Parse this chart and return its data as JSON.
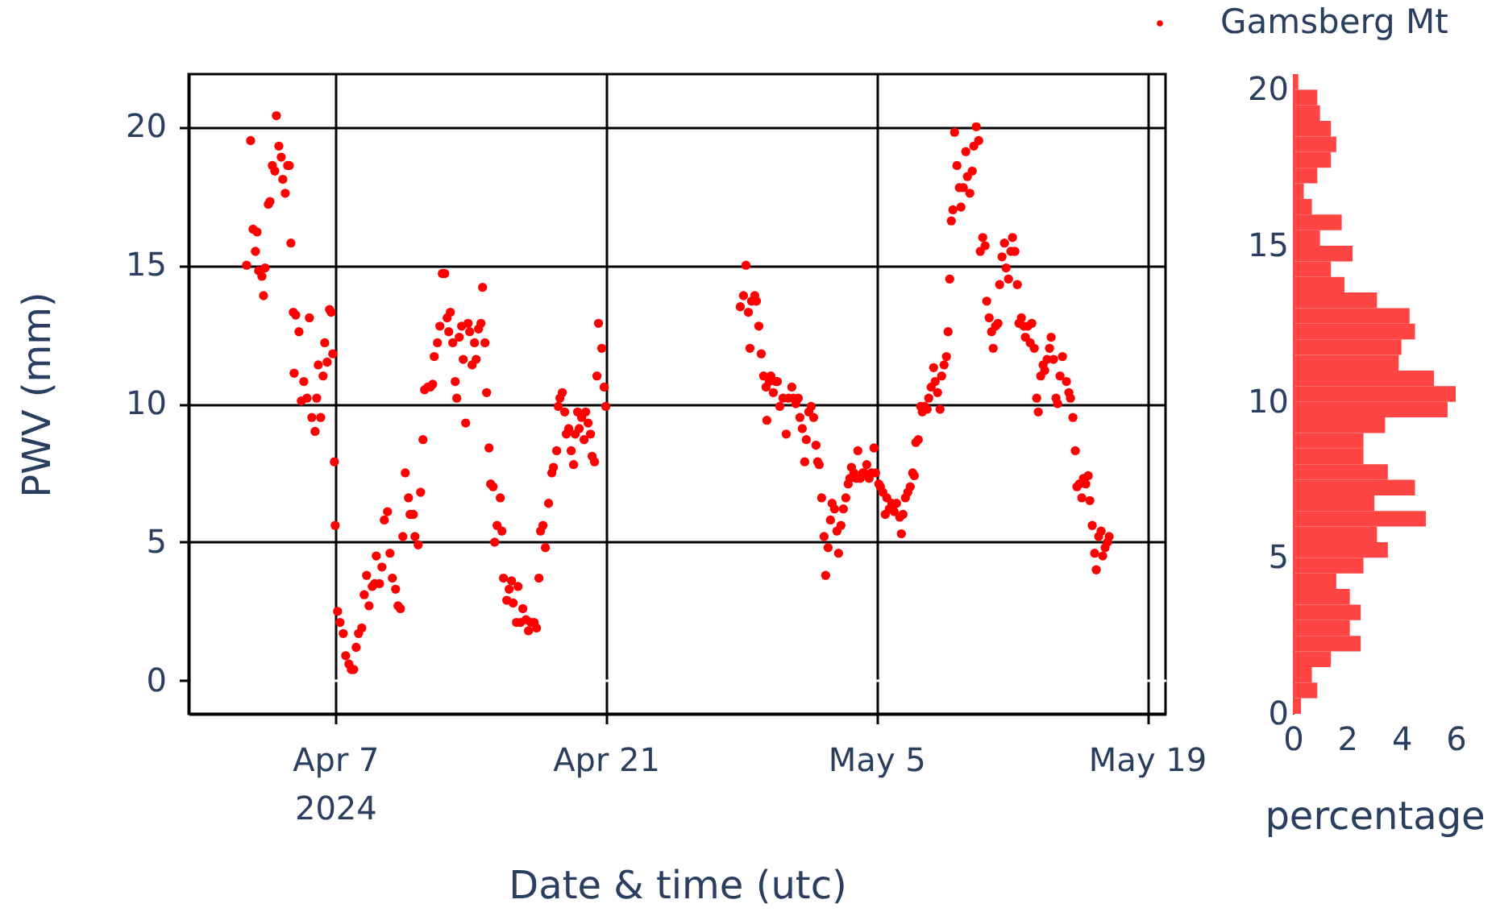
{
  "chart_data": [
    {
      "type": "scatter",
      "xlabel": "Date & time (utc)",
      "ylabel": "PWV (mm)",
      "legend": "top right",
      "marker": "circle",
      "grid": true,
      "xlim": [
        "2024-03-30T10:00",
        "2024-05-19T23:00"
      ],
      "xticks": [
        {
          "value": "2024-04-07",
          "label": "Apr 7\n2024"
        },
        {
          "value": "2024-04-21",
          "label": "Apr 21"
        },
        {
          "value": "2024-05-05",
          "label": "May 5"
        },
        {
          "value": "2024-05-19",
          "label": "May 19"
        }
      ],
      "ylim": [
        -1.2,
        21.9
      ],
      "yticks": [
        0,
        5,
        10,
        15,
        20
      ],
      "x": [
        "2024-04-02T10:00",
        "2024-04-02T15:00",
        "2024-04-02T18:00",
        "2024-04-02T21:00",
        "2024-04-02T23:00",
        "2024-04-03T01:00",
        "2024-04-03T05:00",
        "2024-04-03T07:00",
        "2024-04-03T09:00",
        "2024-04-03T13:00",
        "2024-04-03T15:00",
        "2024-04-03T18:00",
        "2024-04-03T21:00",
        "2024-04-03T23:00",
        "2024-04-04T02:00",
        "2024-04-04T05:00",
        "2024-04-04T07:00",
        "2024-04-04T10:00",
        "2024-04-04T13:00",
        "2024-04-04T15:00",
        "2024-04-04T17:00",
        "2024-04-04T20:00",
        "2024-04-04T21:00",
        "2024-04-04T23:00",
        "2024-04-05T03:00",
        "2024-04-05T06:00",
        "2024-04-05T09:00",
        "2024-04-05T13:00",
        "2024-04-05T16:00",
        "2024-04-05T19:00",
        "2024-04-05T23:00",
        "2024-04-06T01:00",
        "2024-04-06T03:00",
        "2024-04-06T06:00",
        "2024-04-06T09:00",
        "2024-04-06T11:00",
        "2024-04-06T14:00",
        "2024-04-06T17:00",
        "2024-04-06T19:00",
        "2024-04-06T21:00",
        "2024-04-06T23:00",
        "2024-04-07T00:00",
        "2024-04-07T03:00",
        "2024-04-07T06:00",
        "2024-04-07T10:00",
        "2024-04-07T13:00",
        "2024-04-07T17:00",
        "2024-04-07T20:00",
        "2024-04-07T23:00",
        "2024-04-08T02:00",
        "2024-04-08T05:00",
        "2024-04-08T09:00",
        "2024-04-08T12:00",
        "2024-04-08T15:00",
        "2024-04-08T18:00",
        "2024-04-08T22:00",
        "2024-04-09T01:00",
        "2024-04-09T03:00",
        "2024-04-09T07:00",
        "2024-04-09T10:00",
        "2024-04-09T13:00",
        "2024-04-09T17:00",
        "2024-04-09T20:00",
        "2024-04-09T23:00",
        "2024-04-10T03:00",
        "2024-04-10T06:00",
        "2024-04-10T09:00",
        "2024-04-10T12:00",
        "2024-04-10T15:00",
        "2024-04-10T19:00",
        "2024-04-10T21:00",
        "2024-04-11T01:00",
        "2024-04-11T03:00",
        "2024-04-11T07:00",
        "2024-04-11T10:00",
        "2024-04-11T13:00",
        "2024-04-11T15:00",
        "2024-04-11T19:00",
        "2024-04-11T22:00",
        "2024-04-12T01:00",
        "2024-04-12T03:00",
        "2024-04-12T07:00",
        "2024-04-12T10:00",
        "2024-04-12T13:00",
        "2024-04-12T16:00",
        "2024-04-12T19:00",
        "2024-04-12T21:00",
        "2024-04-12T23:00",
        "2024-04-13T02:00",
        "2024-04-13T05:00",
        "2024-04-13T07:00",
        "2024-04-13T10:00",
        "2024-04-13T13:00",
        "2024-04-13T15:00",
        "2024-04-13T18:00",
        "2024-04-13T21:00",
        "2024-04-13T23:00",
        "2024-04-14T02:00",
        "2024-04-14T05:00",
        "2024-04-14T07:00",
        "2024-04-14T10:00",
        "2024-04-14T13:00",
        "2024-04-14T15:00",
        "2024-04-14T18:00",
        "2024-04-14T20:00",
        "2024-04-14T23:00",
        "2024-04-15T01:00",
        "2024-04-15T04:00",
        "2024-04-15T06:00",
        "2024-04-15T09:00",
        "2024-04-15T13:00",
        "2024-04-15T15:00",
        "2024-04-15T17:00",
        "2024-04-15T21:00",
        "2024-04-16T00:00",
        "2024-04-16T03:00",
        "2024-04-16T05:00",
        "2024-04-16T09:00",
        "2024-04-16T11:00",
        "2024-04-16T14:00",
        "2024-04-16T17:00",
        "2024-04-16T21:00",
        "2024-04-17T00:00",
        "2024-04-17T03:00",
        "2024-04-17T07:00",
        "2024-04-17T10:00",
        "2024-04-17T13:00",
        "2024-04-17T15:00",
        "2024-04-17T18:00",
        "2024-04-17T21:00",
        "2024-04-18T01:00",
        "2024-04-18T05:00",
        "2024-04-18T07:00",
        "2024-04-18T11:00",
        "2024-04-18T13:00",
        "2024-04-18T15:00",
        "2024-04-18T18:00",
        "2024-04-18T21:00",
        "2024-04-18T23:00",
        "2024-04-19T02:00",
        "2024-04-19T05:00",
        "2024-04-19T08:00",
        "2024-04-19T10:00",
        "2024-04-19T13:00",
        "2024-04-19T15:00",
        "2024-04-19T18:00",
        "2024-04-19T21:00",
        "2024-04-19T23:00",
        "2024-04-20T02:00",
        "2024-04-20T05:00",
        "2024-04-20T07:00",
        "2024-04-20T10:00",
        "2024-04-20T13:00",
        "2024-04-20T15:00",
        "2024-04-20T19:00",
        "2024-04-20T22:00",
        "2024-04-21T00:00",
        "2024-04-27T23:00",
        "2024-04-28T03:00",
        "2024-04-28T06:00",
        "2024-04-28T09:00",
        "2024-04-28T11:00",
        "2024-04-28T13:00",
        "2024-04-28T17:00",
        "2024-04-28T19:00",
        "2024-04-28T22:00",
        "2024-04-29T01:00",
        "2024-04-29T04:00",
        "2024-04-29T07:00",
        "2024-04-29T08:00",
        "2024-04-29T11:00",
        "2024-04-29T13:00",
        "2024-04-29T16:00",
        "2024-04-29T19:00",
        "2024-04-29T21:00",
        "2024-04-30T00:00",
        "2024-04-30T04:00",
        "2024-04-30T08:00",
        "2024-04-30T11:00",
        "2024-04-30T15:00",
        "2024-04-30T17:00",
        "2024-04-30T20:00",
        "2024-04-30T23:00",
        "2024-05-01T01:00",
        "2024-05-01T04:00",
        "2024-05-01T07:00",
        "2024-05-01T09:00",
        "2024-05-01T12:00",
        "2024-05-01T15:00",
        "2024-05-01T18:00",
        "2024-05-01T21:00",
        "2024-05-01T23:00",
        "2024-05-02T01:00",
        "2024-05-02T04:00",
        "2024-05-02T07:00",
        "2024-05-02T09:00",
        "2024-05-02T12:00",
        "2024-05-02T15:00",
        "2024-05-02T17:00",
        "2024-05-02T20:00",
        "2024-05-02T23:00",
        "2024-05-03T01:00",
        "2024-05-03T04:00",
        "2024-05-03T07:00",
        "2024-05-03T10:00",
        "2024-05-03T13:00",
        "2024-05-03T15:00",
        "2024-05-03T17:00",
        "2024-05-03T20:00",
        "2024-05-03T23:00",
        "2024-05-04T01:00",
        "2024-05-04T04:00",
        "2024-05-04T07:00",
        "2024-05-04T09:00",
        "2024-05-04T12:00",
        "2024-05-04T15:00",
        "2024-05-04T18:00",
        "2024-05-04T21:00",
        "2024-05-04T23:00",
        "2024-05-05T03:00",
        "2024-05-05T05:00",
        "2024-05-05T08:00",
        "2024-05-05T11:00",
        "2024-05-05T13:00",
        "2024-05-05T16:00",
        "2024-05-05T19:00",
        "2024-05-05T22:00",
        "2024-05-06T01:00",
        "2024-05-06T05:00",
        "2024-05-06T07:00",
        "2024-05-06T09:00",
        "2024-05-06T12:00",
        "2024-05-06T15:00",
        "2024-05-06T18:00",
        "2024-05-06T21:00",
        "2024-05-06T23:00",
        "2024-05-07T01:00",
        "2024-05-07T04:00",
        "2024-05-07T07:00",
        "2024-05-07T09:00",
        "2024-05-07T12:00",
        "2024-05-07T15:00",
        "2024-05-07T17:00",
        "2024-05-07T20:00",
        "2024-05-07T23:00",
        "2024-05-08T01:00",
        "2024-05-08T04:00",
        "2024-05-08T07:00",
        "2024-05-08T09:00",
        "2024-05-08T12:00",
        "2024-05-08T15:00",
        "2024-05-08T17:00",
        "2024-05-08T19:00",
        "2024-05-08T21:00",
        "2024-05-08T23:00",
        "2024-05-09T01:00",
        "2024-05-09T04:00",
        "2024-05-09T07:00",
        "2024-05-09T09:00",
        "2024-05-09T12:00",
        "2024-05-09T15:00",
        "2024-05-09T17:00",
        "2024-05-09T20:00",
        "2024-05-09T23:00",
        "2024-05-10T01:00",
        "2024-05-10T04:00",
        "2024-05-10T07:00",
        "2024-05-10T09:00",
        "2024-05-10T12:00",
        "2024-05-10T15:00",
        "2024-05-10T17:00",
        "2024-05-10T20:00",
        "2024-05-10T23:00",
        "2024-05-11T01:00",
        "2024-05-11T04:00",
        "2024-05-11T07:00",
        "2024-05-11T09:00",
        "2024-05-11T12:00",
        "2024-05-11T15:00",
        "2024-05-11T17:00",
        "2024-05-11T20:00",
        "2024-05-11T23:00",
        "2024-05-12T01:00",
        "2024-05-12T04:00",
        "2024-05-12T07:00",
        "2024-05-12T09:00",
        "2024-05-12T12:00",
        "2024-05-12T15:00",
        "2024-05-12T17:00",
        "2024-05-12T20:00",
        "2024-05-12T23:00",
        "2024-05-13T01:00",
        "2024-05-13T04:00",
        "2024-05-13T07:00",
        "2024-05-13T09:00",
        "2024-05-13T12:00",
        "2024-05-13T15:00",
        "2024-05-13T17:00",
        "2024-05-13T20:00",
        "2024-05-13T23:00",
        "2024-05-14T01:00",
        "2024-05-14T04:00",
        "2024-05-14T07:00",
        "2024-05-14T09:00",
        "2024-05-14T12:00",
        "2024-05-14T15:00",
        "2024-05-14T20:00",
        "2024-05-14T23:00",
        "2024-05-15T01:00",
        "2024-05-15T04:00",
        "2024-05-15T07:00",
        "2024-05-15T09:00",
        "2024-05-15T12:00",
        "2024-05-15T15:00",
        "2024-05-15T17:00",
        "2024-05-15T20:00",
        "2024-05-15T23:00",
        "2024-05-16T01:00",
        "2024-05-16T04:00",
        "2024-05-16T07:00",
        "2024-05-16T09:00",
        "2024-05-16T12:00",
        "2024-05-16T15:00",
        "2024-05-16T17:00",
        "2024-05-16T20:00",
        "2024-05-16T23:00",
        "2024-05-17T01:00"
      ],
      "series": [
        {
          "name": "Gamsberg Mt",
          "color": "#ff0000",
          "values": [
            15.0,
            19.5,
            16.3,
            15.5,
            16.2,
            14.8,
            14.6,
            13.9,
            14.9,
            17.2,
            17.3,
            18.6,
            18.4,
            20.4,
            19.3,
            18.9,
            18.1,
            17.6,
            18.6,
            18.6,
            15.8,
            13.3,
            11.1,
            13.2,
            12.6,
            10.1,
            10.8,
            10.2,
            13.1,
            9.5,
            9.0,
            10.2,
            11.4,
            9.5,
            11.0,
            12.2,
            11.5,
            13.4,
            13.3,
            11.8,
            7.9,
            5.6,
            2.5,
            2.1,
            1.7,
            0.9,
            0.6,
            0.4,
            0.4,
            1.2,
            1.7,
            1.9,
            3.1,
            3.8,
            2.7,
            3.4,
            3.5,
            4.5,
            3.5,
            4.1,
            5.8,
            6.1,
            4.6,
            3.7,
            3.3,
            2.7,
            2.6,
            5.2,
            7.5,
            6.6,
            6.0,
            6.0,
            5.2,
            4.9,
            6.8,
            8.7,
            10.5,
            10.6,
            10.6,
            10.7,
            11.7,
            12.2,
            12.8,
            14.7,
            14.7,
            13.1,
            12.6,
            13.3,
            12.2,
            10.8,
            10.2,
            12.4,
            12.8,
            11.6,
            9.3,
            12.9,
            12.6,
            11.4,
            12.2,
            11.6,
            12.7,
            12.9,
            14.2,
            12.2,
            10.4,
            8.4,
            7.1,
            7.0,
            5.0,
            5.6,
            6.6,
            5.4,
            3.7,
            2.9,
            3.3,
            3.6,
            2.8,
            2.1,
            3.4,
            2.1,
            2.6,
            2.2,
            1.8,
            2.1,
            2.1,
            1.9,
            3.7,
            5.4,
            5.6,
            4.8,
            6.4,
            7.5,
            7.7,
            8.3,
            9.9,
            10.2,
            10.4,
            9.7,
            8.9,
            9.1,
            8.3,
            7.8,
            8.9,
            9.7,
            9.1,
            9.5,
            8.7,
            9.7,
            9.3,
            8.9,
            8.1,
            7.9,
            11.0,
            12.9,
            12.0,
            10.6,
            9.9,
            13.5,
            13.9,
            15.0,
            13.3,
            12.0,
            13.7,
            13.9,
            13.7,
            12.8,
            11.8,
            11.0,
            10.6,
            9.4,
            10.8,
            11.0,
            10.4,
            10.8,
            10.8,
            9.9,
            10.2,
            8.9,
            10.2,
            10.6,
            10.2,
            10.0,
            10.2,
            9.5,
            9.1,
            7.9,
            8.7,
            9.7,
            9.9,
            9.5,
            8.5,
            7.9,
            7.8,
            6.6,
            5.2,
            3.8,
            4.8,
            5.8,
            6.4,
            6.2,
            5.4,
            4.6,
            5.6,
            6.2,
            6.6,
            7.1,
            7.3,
            7.7,
            7.5,
            7.3,
            8.3,
            7.3,
            7.5,
            7.5,
            7.8,
            7.3,
            7.5,
            8.4,
            7.5,
            7.1,
            7.0,
            6.8,
            6.0,
            6.6,
            6.2,
            6.4,
            6.1,
            6.4,
            5.9,
            5.3,
            6.0,
            6.6,
            6.8,
            7.0,
            7.5,
            7.4,
            8.6,
            8.7,
            9.9,
            9.7,
            9.9,
            9.8,
            10.2,
            10.6,
            11.3,
            10.8,
            10.4,
            9.8,
            11.0,
            11.4,
            11.7,
            12.6,
            14.5,
            16.6,
            17.0,
            19.8,
            18.6,
            17.8,
            17.1,
            17.8,
            19.1,
            18.2,
            17.6,
            18.4,
            19.3,
            20.0,
            19.5,
            15.5,
            16.0,
            15.7,
            13.7,
            13.1,
            12.6,
            12.0,
            12.8,
            12.9,
            14.3,
            15.3,
            15.8,
            14.9,
            14.5,
            15.5,
            16.0,
            15.5,
            14.3,
            12.9,
            13.1,
            12.8,
            12.4,
            12.8,
            12.2,
            12.9,
            12.0,
            10.2,
            9.7,
            11.0,
            11.4,
            11.2,
            11.6,
            12.0,
            12.4,
            11.6,
            10.2,
            10.0,
            11.0,
            11.7,
            10.8,
            10.4,
            10.2,
            9.5,
            8.3,
            7.0,
            7.1,
            6.6,
            7.3,
            7.1,
            7.4,
            6.5,
            5.6,
            4.6,
            4.0,
            5.2,
            5.4,
            4.5,
            4.8,
            5.0,
            5.2
          ]
        }
      ]
    },
    {
      "type": "histogram",
      "orientation": "horizontal",
      "xlabel": "percentage",
      "color": "#ff4444",
      "bins": [
        0,
        0.5,
        1,
        1.5,
        2,
        2.5,
        3,
        3.5,
        4,
        4.5,
        5,
        5.5,
        6,
        6.5,
        7,
        7.5,
        8,
        8.5,
        9,
        9.5,
        10,
        10.5,
        11,
        11.5,
        12,
        12.5,
        13,
        13.5,
        14,
        14.5,
        15,
        15.5,
        16,
        16.5,
        17,
        17.5,
        18,
        18.5,
        19,
        19.5,
        20,
        20.5
      ],
      "values": [
        0.3,
        0.9,
        0.7,
        1.4,
        2.5,
        2.1,
        2.5,
        2.1,
        1.6,
        2.6,
        3.5,
        3.1,
        4.9,
        3.0,
        4.5,
        3.5,
        2.6,
        2.6,
        3.4,
        5.7,
        6.0,
        5.2,
        3.9,
        4.0,
        4.5,
        4.3,
        3.1,
        1.9,
        1.4,
        2.2,
        1.0,
        1.8,
        0.7,
        0.4,
        0.9,
        1.4,
        1.6,
        1.4,
        1.0,
        0.9,
        0.2
      ],
      "xlim": [
        0,
        6
      ],
      "xticks": [
        0,
        2,
        4,
        6
      ],
      "ylim": [
        0,
        20.5
      ],
      "yticks": [
        0,
        5,
        10,
        15,
        20
      ]
    }
  ]
}
